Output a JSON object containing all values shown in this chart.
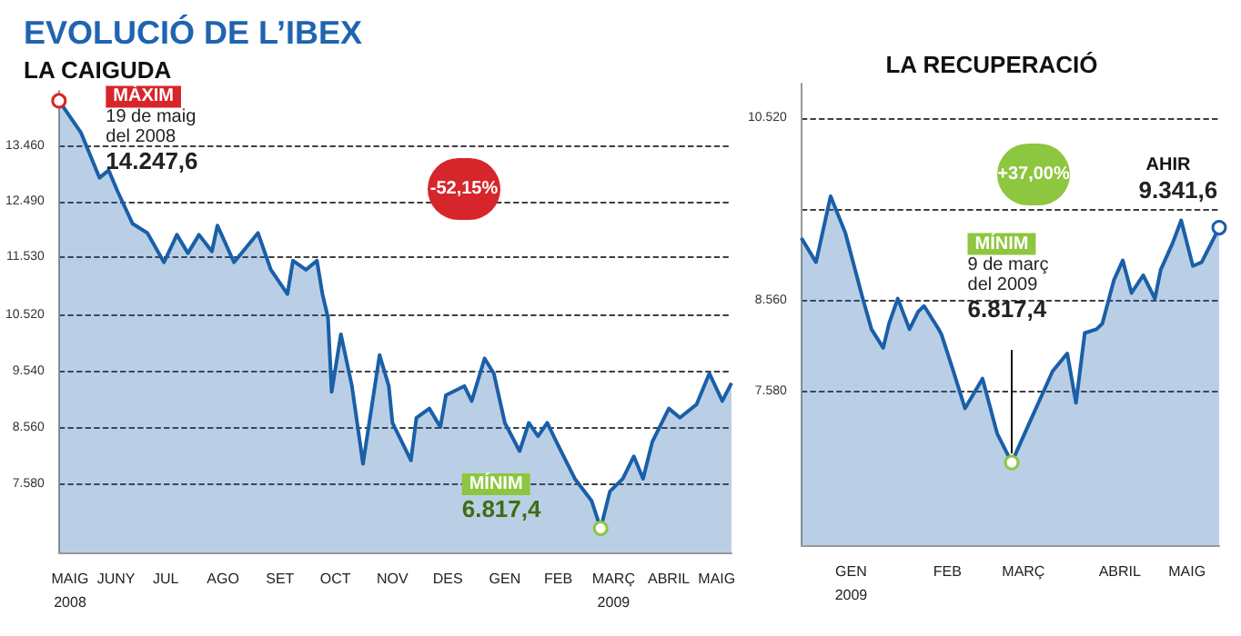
{
  "chart_data": [
    {
      "type": "area",
      "title": "EVOLUCIÓ DE L’IBEX",
      "subtitle": "LA CAIGUDA",
      "marker": "none",
      "grid": "y",
      "x": [
        "2008-05-19",
        "2008-05-31",
        "2008-06-10",
        "2008-06-15",
        "2008-06-20",
        "2008-06-28",
        "2008-07-06",
        "2008-07-15",
        "2008-07-22",
        "2008-07-28",
        "2008-08-03",
        "2008-08-10",
        "2008-08-13",
        "2008-08-22",
        "2008-09-04",
        "2008-09-11",
        "2008-09-20",
        "2008-09-23",
        "2008-09-30",
        "2008-10-06",
        "2008-10-09",
        "2008-10-12",
        "2008-10-14",
        "2008-10-19",
        "2008-10-25",
        "2008-10-31",
        "2008-11-09",
        "2008-11-14",
        "2008-11-16",
        "2008-11-26",
        "2008-11-29",
        "2008-12-06",
        "2008-12-12",
        "2008-12-15",
        "2008-12-25",
        "2008-12-29",
        "2009-01-05",
        "2009-01-10",
        "2009-01-16",
        "2009-01-24",
        "2009-01-29",
        "2009-02-03",
        "2009-02-08",
        "2009-02-13",
        "2009-02-23",
        "2009-03-04",
        "2009-03-09",
        "2009-03-14",
        "2009-03-21",
        "2009-03-27",
        "2009-04-01",
        "2009-04-06",
        "2009-04-15",
        "2009-04-21",
        "2009-04-30",
        "2009-05-07",
        "2009-05-14",
        "2009-05-19"
      ],
      "series": [
        {
          "color": "#1a5fa8",
          "values": [
            14247.6,
            13690,
            12910,
            13040,
            12660,
            12110,
            11950,
            11440,
            11920,
            11600,
            11920,
            11630,
            12080,
            11440,
            11950,
            11310,
            10890,
            11470,
            11310,
            11470,
            10890,
            10480,
            9190,
            10190,
            9290,
            7940,
            9830,
            9290,
            8650,
            8000,
            8740,
            8900,
            8580,
            9130,
            9290,
            9030,
            9770,
            9510,
            8650,
            8160,
            8650,
            8420,
            8650,
            8320,
            7680,
            7300,
            6817.4,
            7460,
            7680,
            8070,
            7680,
            8320,
            8900,
            8740,
            8970,
            9510,
            9030,
            9341.6
          ]
        }
      ],
      "xlim": [
        "2008-05-19",
        "2009-05-19"
      ],
      "xticks": [
        {
          "value": "2008-05-25",
          "label": "MAIG\n2008"
        },
        {
          "value": "2008-06-19",
          "label": "JUNY"
        },
        {
          "value": "2008-07-16",
          "label": "JUL"
        },
        {
          "value": "2008-08-16",
          "label": "AGO"
        },
        {
          "value": "2008-09-16",
          "label": "SET"
        },
        {
          "value": "2008-10-16",
          "label": "OCT"
        },
        {
          "value": "2008-11-16",
          "label": "NOV"
        },
        {
          "value": "2008-12-16",
          "label": "DES"
        },
        {
          "value": "2009-01-16",
          "label": "GEN"
        },
        {
          "value": "2009-02-14",
          "label": "FEB"
        },
        {
          "value": "2009-03-16",
          "label": "MARÇ\n2009"
        },
        {
          "value": "2009-04-15",
          "label": "ABRIL"
        },
        {
          "value": "2009-05-11",
          "label": "MAIG"
        }
      ],
      "ylim": [
        6400,
        14420
      ],
      "yticks": [
        {
          "value": 7580,
          "label": "7.580"
        },
        {
          "value": 8560,
          "label": "8.560"
        },
        {
          "value": 9540,
          "label": "9.540"
        },
        {
          "value": 10520,
          "label": "10.520"
        },
        {
          "value": 11530,
          "label": "11.530"
        },
        {
          "value": 12490,
          "label": "12.490"
        },
        {
          "value": 13460,
          "label": "13.460"
        }
      ],
      "annotations": [
        {
          "text": "MÀXIM\n19 de maig\ndel 2008\n14.247,6",
          "x": "2008-05-19",
          "y": 14247.6
        },
        {
          "text": "MÍNIM\n6.817,4",
          "x": "2009-03-09",
          "y": 6817.4
        },
        "-52,15%"
      ]
    },
    {
      "type": "area",
      "title": "LA RECUPERACIÓ",
      "marker": "none",
      "grid": "y",
      "x": [
        "2008-12-27",
        "2009-01-01",
        "2009-01-06",
        "2009-01-11",
        "2009-01-17",
        "2009-01-20",
        "2009-01-24",
        "2009-01-26",
        "2009-01-29",
        "2009-02-02",
        "2009-02-05",
        "2009-02-07",
        "2009-02-12",
        "2009-02-13",
        "2009-02-17",
        "2009-02-21",
        "2009-02-27",
        "2009-03-04",
        "2009-03-09",
        "2009-03-12",
        "2009-03-16",
        "2009-03-23",
        "2009-03-28",
        "2009-03-31",
        "2009-04-03",
        "2009-04-07",
        "2009-04-09",
        "2009-04-13",
        "2009-04-16",
        "2009-04-19",
        "2009-04-23",
        "2009-04-27",
        "2009-04-29",
        "2009-05-03",
        "2009-05-06",
        "2009-05-10",
        "2009-05-13",
        "2009-05-19"
      ],
      "series": [
        {
          "color": "#1a5fa8",
          "values": [
            9230,
            8970,
            9680,
            9290,
            8580,
            8250,
            8050,
            8310,
            8580,
            8250,
            8440,
            8500,
            8250,
            8190,
            7800,
            7400,
            7720,
            7130,
            6817.4,
            7030,
            7310,
            7800,
            7990,
            7460,
            8210,
            8250,
            8310,
            8780,
            8990,
            8640,
            8830,
            8580,
            8890,
            9170,
            9420,
            8930,
            8970,
            9341.6
          ]
        }
      ],
      "xlim": [
        "2008-12-27",
        "2009-05-19"
      ],
      "xticks": [
        {
          "value": "2009-01-13",
          "label": "GEN\n2009"
        },
        {
          "value": "2009-02-15",
          "label": "FEB"
        },
        {
          "value": "2009-03-13",
          "label": "MARÇ"
        },
        {
          "value": "2009-04-15",
          "label": "ABRIL"
        },
        {
          "value": "2009-05-08",
          "label": "MAIG"
        }
      ],
      "ylim": [
        5930,
        10890
      ],
      "yticks": [
        {
          "value": 7580,
          "label": "7.580"
        },
        {
          "value": 8560,
          "label": "8.560"
        },
        {
          "value": 9540,
          "label": null
        },
        {
          "value": 10520,
          "label": "10.520"
        }
      ],
      "annotations": [
        {
          "text": "MÍNIM\n9 de març\ndel 2009\n6.817,4",
          "x": "2009-03-09",
          "y": 6817.4
        },
        {
          "text": "AHIR\n9.341,6",
          "x": "2009-05-19",
          "y": 9341.6
        },
        "+37,00%"
      ]
    }
  ]
}
